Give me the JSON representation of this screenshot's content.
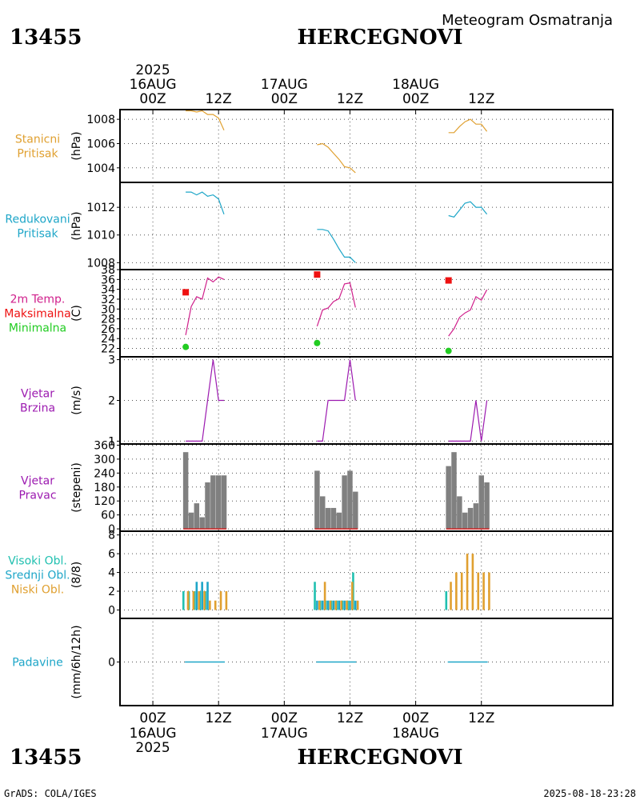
{
  "header": {
    "station_id": "13455",
    "station_name": "HERCEGNOVI",
    "chart_type": "Meteogram Osmatranja"
  },
  "footer": {
    "station_id": "13455",
    "station_name": "HERCEGNOVI",
    "credit": "GrADS: COLA/IGES",
    "timestamp": "2025-08-18-23:28"
  },
  "chart_data": {
    "type": "line",
    "title": "Meteogram Osmatranja",
    "x_axis": {
      "unit": "hours since 2025-08-16 00Z",
      "range": [
        -6,
        84
      ],
      "ticks": [
        {
          "h": 0,
          "label": "00Z"
        },
        {
          "h": 12,
          "label": "12Z"
        },
        {
          "h": 24,
          "label": "00Z"
        },
        {
          "h": 36,
          "label": "12Z"
        },
        {
          "h": 48,
          "label": "00Z"
        },
        {
          "h": 60,
          "label": "12Z"
        }
      ],
      "day_labels": [
        {
          "h": 0,
          "year": "2025",
          "date": "16AUG"
        },
        {
          "h": 24,
          "date": "17AUG"
        },
        {
          "h": 48,
          "date": "18AUG"
        }
      ]
    },
    "panels": [
      {
        "id": "station_pressure",
        "type": "line",
        "labels": [
          {
            "text": "Stanicni",
            "color": "#e0a030"
          },
          {
            "text": "Pritisak",
            "color": "#e0a030"
          }
        ],
        "ylabel": "(hPa)",
        "ylim": [
          1002.8,
          1008.8
        ],
        "yticks": [
          1004,
          1006,
          1008
        ],
        "series": [
          {
            "name": "Stanicni Pritisak",
            "color": "#e0a030",
            "x": [
              6,
              7,
              8,
              9,
              10,
              11,
              12,
              13
            ],
            "y": [
              1008.7,
              1008.7,
              1008.6,
              1008.7,
              1008.4,
              1008.4,
              1008.1,
              1007.1
            ]
          },
          {
            "name": "Stanicni Pritisak",
            "color": "#e0a030",
            "x": [
              30,
              31,
              32,
              33,
              34,
              35,
              36,
              37
            ],
            "y": [
              1005.9,
              1006.0,
              1005.7,
              1005.2,
              1004.7,
              1004.1,
              1004.0,
              1003.6
            ]
          },
          {
            "name": "Stanicni Pritisak",
            "color": "#e0a030",
            "x": [
              54,
              55,
              56,
              57,
              58,
              59,
              60,
              61
            ],
            "y": [
              1006.9,
              1006.9,
              1007.4,
              1007.8,
              1008.0,
              1007.6,
              1007.6,
              1007.0
            ]
          }
        ]
      },
      {
        "id": "reduced_pressure",
        "type": "line",
        "labels": [
          {
            "text": "Redukovani",
            "color": "#1ea6c8"
          },
          {
            "text": "Pritisak",
            "color": "#1ea6c8"
          }
        ],
        "ylabel": "(hPa)",
        "ylim": [
          1007.5,
          1013.8
        ],
        "yticks": [
          1008,
          1010,
          1012
        ],
        "series": [
          {
            "name": "Redukovani Pritisak",
            "color": "#1ea6c8",
            "x": [
              6,
              7,
              8,
              9,
              10,
              11,
              12,
              13
            ],
            "y": [
              1013.1,
              1013.1,
              1012.9,
              1013.1,
              1012.8,
              1012.9,
              1012.6,
              1011.5
            ]
          },
          {
            "name": "Redukovani Pritisak",
            "color": "#1ea6c8",
            "x": [
              30,
              31,
              32,
              33,
              34,
              35,
              36,
              37
            ],
            "y": [
              1010.4,
              1010.4,
              1010.3,
              1009.7,
              1009.0,
              1008.4,
              1008.4,
              1008.0
            ]
          },
          {
            "name": "Redukovani Pritisak",
            "color": "#1ea6c8",
            "x": [
              54,
              55,
              56,
              57,
              58,
              59,
              60,
              61
            ],
            "y": [
              1011.4,
              1011.3,
              1011.8,
              1012.3,
              1012.4,
              1012.0,
              1012.0,
              1011.5
            ]
          }
        ]
      },
      {
        "id": "temperature",
        "type": "line",
        "labels": [
          {
            "text": "2m Temp.",
            "color": "#d0208c"
          },
          {
            "text": "Maksimalna",
            "color": "#ee1111"
          },
          {
            "text": "Minimalna",
            "color": "#22cc22"
          }
        ],
        "ylabel": "(C)",
        "ylim": [
          20.3,
          38
        ],
        "yticks": [
          22,
          24,
          26,
          28,
          30,
          32,
          34,
          36,
          38
        ],
        "series": [
          {
            "name": "2m Temp.",
            "color": "#d0208c",
            "x": [
              6,
              7,
              8,
              9,
              10,
              11,
              12,
              13
            ],
            "y": [
              24.7,
              30.5,
              32.5,
              32.0,
              36.3,
              35.5,
              36.5,
              36.0
            ]
          },
          {
            "name": "2m Temp.",
            "color": "#d0208c",
            "x": [
              30,
              31,
              32,
              33,
              34,
              35,
              36,
              37
            ],
            "y": [
              26.5,
              29.8,
              30.2,
              31.5,
              32.1,
              35.1,
              35.3,
              30.3
            ]
          },
          {
            "name": "2m Temp.",
            "color": "#d0208c",
            "x": [
              54,
              55,
              56,
              57,
              58,
              59,
              60,
              61
            ],
            "y": [
              24.5,
              26.0,
              28.3,
              29.2,
              29.8,
              32.5,
              31.8,
              33.9
            ]
          }
        ],
        "markers": [
          {
            "name": "Maksimalna",
            "color": "#ee1111",
            "shape": "square",
            "points": [
              [
                6,
                33.4
              ],
              [
                30,
                37.0
              ],
              [
                54,
                35.8
              ]
            ]
          },
          {
            "name": "Minimalna",
            "color": "#22cc22",
            "shape": "circle",
            "points": [
              [
                6,
                22.3
              ],
              [
                30,
                23.1
              ],
              [
                54,
                21.5
              ]
            ]
          }
        ]
      },
      {
        "id": "wind_speed",
        "type": "line",
        "labels": [
          {
            "text": "Vjetar",
            "color": "#9c1ab0"
          },
          {
            "text": "Brzina",
            "color": "#9c1ab0"
          }
        ],
        "ylabel": "(m/s)",
        "ylim": [
          0.93,
          3.07
        ],
        "yticks": [
          1,
          2,
          3
        ],
        "series": [
          {
            "name": "Vjetar Brzina",
            "color": "#9c1ab0",
            "x": [
              6,
              7,
              8,
              9,
              10,
              11,
              12,
              13
            ],
            "y": [
              1,
              1,
              1,
              1,
              2,
              3,
              2,
              2
            ]
          },
          {
            "name": "Vjetar Brzina",
            "color": "#9c1ab0",
            "x": [
              30,
              31,
              32,
              33,
              34,
              35,
              36,
              37
            ],
            "y": [
              1,
              1,
              2,
              2,
              2,
              2,
              3,
              2
            ]
          },
          {
            "name": "Vjetar Brzina",
            "color": "#9c1ab0",
            "x": [
              54,
              55,
              56,
              57,
              58,
              59,
              60,
              61
            ],
            "y": [
              1,
              1,
              1,
              1,
              1,
              2,
              1,
              2
            ]
          }
        ]
      },
      {
        "id": "wind_direction",
        "type": "bar",
        "labels": [
          {
            "text": "Vjetar",
            "color": "#9c1ab0"
          },
          {
            "text": "Pravac",
            "color": "#9c1ab0"
          }
        ],
        "ylabel": "(stepeni)",
        "ylim": [
          -10,
          365
        ],
        "yticks": [
          0,
          60,
          120,
          180,
          240,
          300,
          360
        ],
        "bar_color": "#808080",
        "baseline_color": "#d02020",
        "x": [
          6,
          7,
          8,
          9,
          10,
          11,
          12,
          13,
          30,
          31,
          32,
          33,
          34,
          35,
          36,
          37,
          54,
          55,
          56,
          57,
          58,
          59,
          60,
          61
        ],
        "values": [
          330,
          70,
          110,
          50,
          200,
          230,
          230,
          230,
          250,
          140,
          90,
          90,
          70,
          230,
          250,
          160,
          270,
          330,
          140,
          70,
          90,
          110,
          230,
          200
        ]
      },
      {
        "id": "clouds",
        "type": "bar",
        "labels": [
          {
            "text": "Visoki Obl.",
            "color": "#20c0b0"
          },
          {
            "text": "Srednji Obl.",
            "color": "#1ea6c8"
          },
          {
            "text": "Niski Obl.",
            "color": "#e0a030"
          }
        ],
        "ylabel": "(8/8)",
        "ylim": [
          -0.9,
          8.4
        ],
        "yticks": [
          0,
          2,
          4,
          6,
          8
        ],
        "x": [
          6,
          7,
          8,
          9,
          10,
          11,
          12,
          13,
          30,
          31,
          32,
          33,
          34,
          35,
          36,
          37,
          54,
          55,
          56,
          57,
          58,
          59,
          60,
          61
        ],
        "series": [
          {
            "name": "Visoki Obl.",
            "color": "#20c0b0",
            "values": [
              2,
              2,
              2,
              2,
              2,
              0,
              0,
              0,
              3,
              1,
              1,
              1,
              1,
              1,
              1,
              4,
              2,
              0,
              0,
              0,
              0,
              0,
              0,
              0
            ]
          },
          {
            "name": "Srednji Obl.",
            "color": "#1ea6c8",
            "values": [
              0,
              0,
              3,
              3,
              3,
              0,
              0,
              0,
              1,
              1,
              1,
              1,
              1,
              1,
              1,
              1,
              0,
              0,
              0,
              0,
              0,
              0,
              0,
              0
            ]
          },
          {
            "name": "Niski Obl.",
            "color": "#e0a030",
            "values": [
              2,
              2,
              2,
              2,
              1,
              1,
              2,
              2,
              1,
              3,
              1,
              1,
              1,
              1,
              3,
              1,
              3,
              4,
              4,
              6,
              6,
              4,
              4,
              4
            ]
          }
        ]
      },
      {
        "id": "precipitation",
        "type": "bar",
        "labels": [
          {
            "text": "Padavine",
            "color": "#1ea6c8"
          }
        ],
        "ylabel": "(mm/6h/12h)",
        "ylim": [
          -5,
          5
        ],
        "yticks": [
          0
        ],
        "color": "#1ea6c8",
        "x": [
          6,
          7,
          8,
          9,
          10,
          11,
          12,
          13,
          30,
          31,
          32,
          33,
          34,
          35,
          36,
          37,
          54,
          55,
          56,
          57,
          58,
          59,
          60,
          61
        ],
        "values": [
          0,
          0,
          0,
          0,
          0,
          0,
          0,
          0,
          0,
          0,
          0,
          0,
          0,
          0,
          0,
          0,
          0,
          0,
          0,
          0,
          0,
          0,
          0,
          0
        ]
      }
    ]
  }
}
